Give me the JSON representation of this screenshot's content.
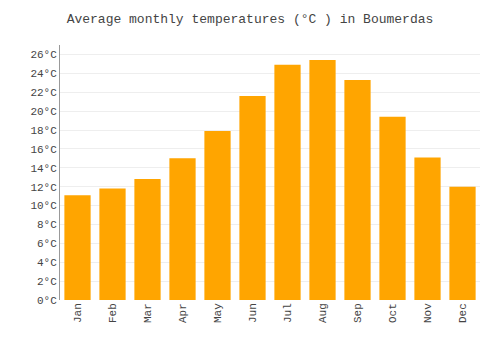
{
  "chart_data": {
    "type": "bar",
    "title": "Average monthly temperatures (°C ) in Boumerdas",
    "categories": [
      "Jan",
      "Feb",
      "Mar",
      "Apr",
      "May",
      "Jun",
      "Jul",
      "Aug",
      "Sep",
      "Oct",
      "Nov",
      "Dec"
    ],
    "values": [
      11.1,
      11.8,
      12.8,
      15.0,
      17.9,
      21.6,
      24.9,
      25.4,
      23.3,
      19.4,
      15.1,
      12.0
    ],
    "color": "#FFA500",
    "ylim": [
      0,
      27
    ],
    "yticks": [
      {
        "value": 0,
        "label": "0°C"
      },
      {
        "value": 2,
        "label": "2°C"
      },
      {
        "value": 4,
        "label": "4°C"
      },
      {
        "value": 6,
        "label": "6°C"
      },
      {
        "value": 8,
        "label": "8°C"
      },
      {
        "value": 10,
        "label": "10°C"
      },
      {
        "value": 12,
        "label": "12°C"
      },
      {
        "value": 14,
        "label": "14°C"
      },
      {
        "value": 16,
        "label": "16°C"
      },
      {
        "value": 18,
        "label": "18°C"
      },
      {
        "value": 20,
        "label": "20°C"
      },
      {
        "value": 22,
        "label": "22°C"
      },
      {
        "value": 24,
        "label": "24°C"
      },
      {
        "value": 26,
        "label": "26°C"
      }
    ],
    "grid": true
  }
}
